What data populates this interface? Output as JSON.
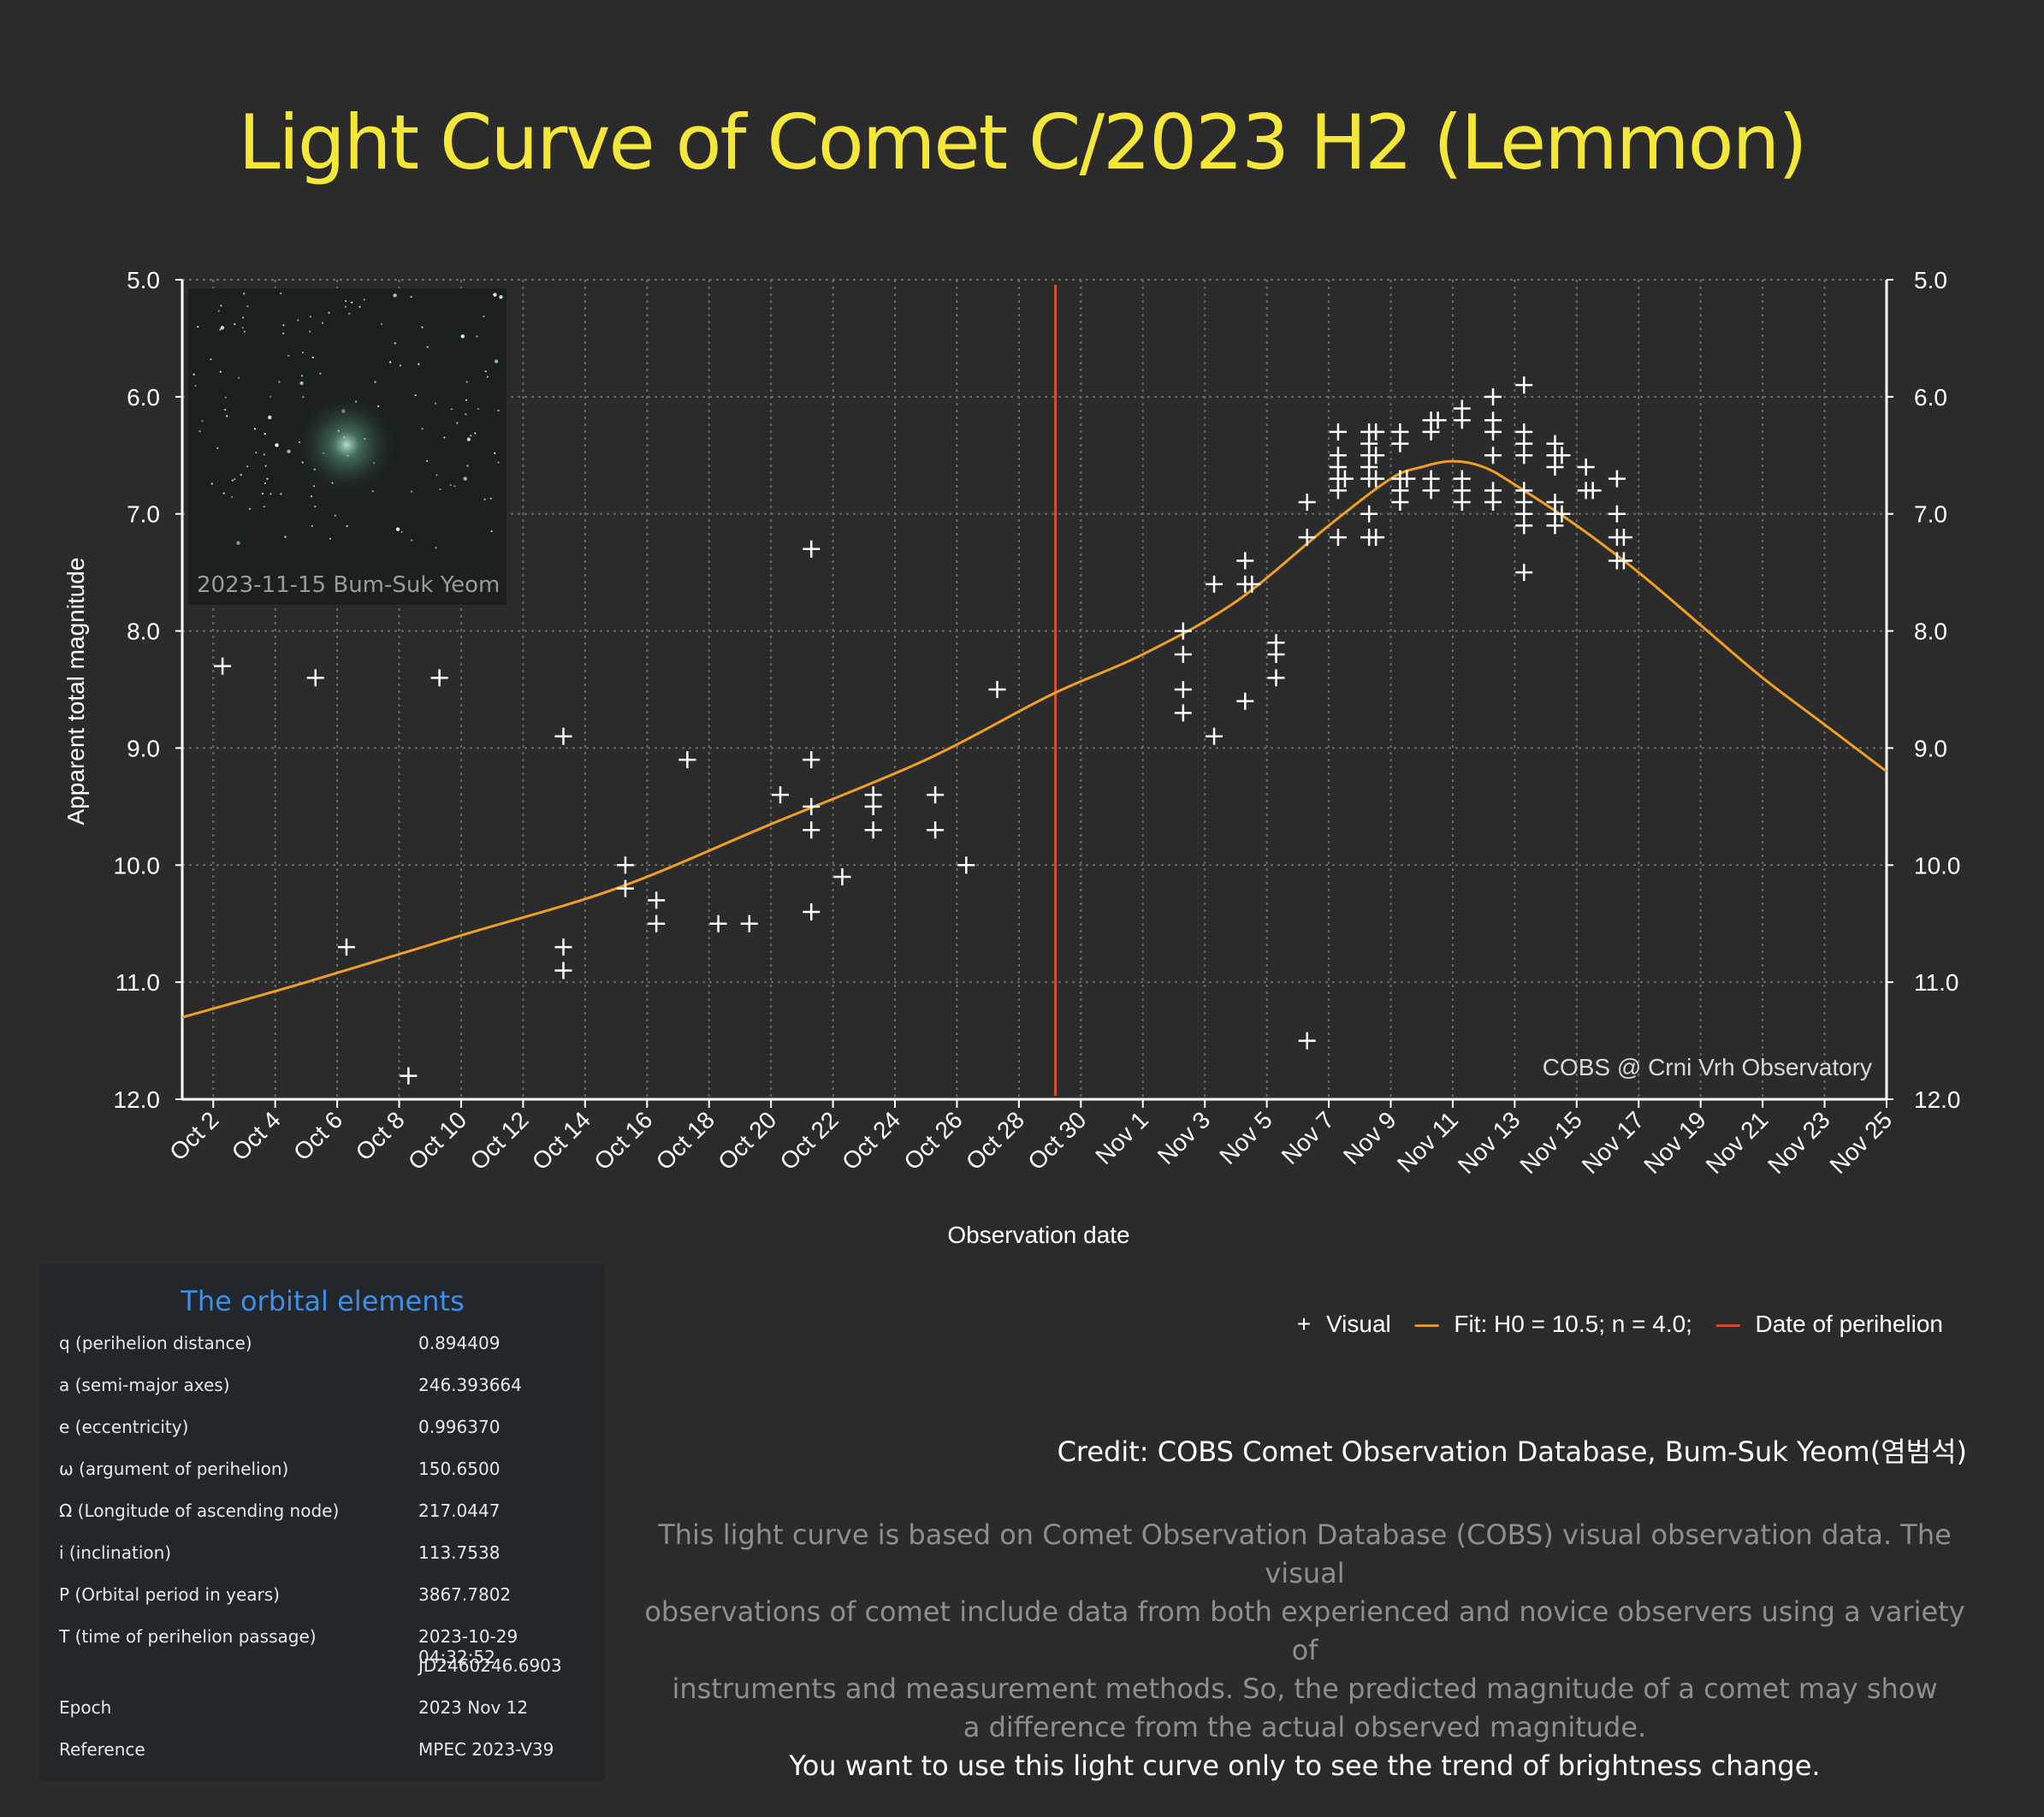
{
  "title": "Light Curve of Comet C/2023 H2 (Lemmon)",
  "colors": {
    "title": "#f5e63a",
    "fit": "#f0a020",
    "perihelion": "#e04a2e",
    "points": "#ffffff",
    "orbital_heading": "#3d8fe8"
  },
  "inset": {
    "caption": "2023-11-15  Bum-Suk Yeom"
  },
  "watermark": "COBS @ Crni Vrh Observatory",
  "legend": {
    "visual": "Visual",
    "fit": "Fit: H0 = 10.5; n = 4.0;",
    "perihelion": "Date of perihelion"
  },
  "chart_data": {
    "type": "scatter",
    "title": "Light Curve of Comet C/2023 H2 (Lemmon)",
    "xlabel": "Observation date",
    "ylabel": "Apparent total magnitude",
    "ylim": [
      12.0,
      5.0
    ],
    "y_inverted": true,
    "xlim": [
      "2023-10-01",
      "2023-11-25"
    ],
    "x_ticks": [
      "Oct 2",
      "Oct 4",
      "Oct 6",
      "Oct 8",
      "Oct 10",
      "Oct 12",
      "Oct 14",
      "Oct 16",
      "Oct 18",
      "Oct 20",
      "Oct 22",
      "Oct 24",
      "Oct 26",
      "Oct 28",
      "Oct 30",
      "Nov 1",
      "Nov 3",
      "Nov 5",
      "Nov 7",
      "Nov 9",
      "Nov 11",
      "Nov 13",
      "Nov 15",
      "Nov 17",
      "Nov 19",
      "Nov 21",
      "Nov 23",
      "Nov 25"
    ],
    "y_ticks": [
      "5.0",
      "6.0",
      "7.0",
      "8.0",
      "9.0",
      "10.0",
      "11.0",
      "12.0"
    ],
    "grid": true,
    "perihelion_date": "2023-10-29",
    "series": [
      {
        "name": "Visual",
        "marker": "+",
        "points": [
          [
            "2023-10-02",
            8.3
          ],
          [
            "2023-10-05",
            8.4
          ],
          [
            "2023-10-06",
            10.7
          ],
          [
            "2023-10-08",
            11.8
          ],
          [
            "2023-10-09",
            8.4
          ],
          [
            "2023-10-13",
            8.9
          ],
          [
            "2023-10-13",
            10.7
          ],
          [
            "2023-10-13",
            10.9
          ],
          [
            "2023-10-15",
            10.0
          ],
          [
            "2023-10-15",
            10.2
          ],
          [
            "2023-10-16",
            10.3
          ],
          [
            "2023-10-16",
            10.5
          ],
          [
            "2023-10-17",
            9.1
          ],
          [
            "2023-10-18",
            10.5
          ],
          [
            "2023-10-19",
            10.5
          ],
          [
            "2023-10-20",
            9.4
          ],
          [
            "2023-10-21",
            9.7
          ],
          [
            "2023-10-21",
            7.3
          ],
          [
            "2023-10-21",
            9.1
          ],
          [
            "2023-10-21",
            10.4
          ],
          [
            "2023-10-21",
            9.5
          ],
          [
            "2023-10-22",
            10.1
          ],
          [
            "2023-10-23",
            9.4
          ],
          [
            "2023-10-23",
            9.5
          ],
          [
            "2023-10-23",
            9.7
          ],
          [
            "2023-10-25",
            9.4
          ],
          [
            "2023-10-25",
            9.7
          ],
          [
            "2023-10-26",
            10.0
          ],
          [
            "2023-10-27",
            8.5
          ],
          [
            "2023-11-02",
            8.0
          ],
          [
            "2023-11-02",
            8.2
          ],
          [
            "2023-11-02",
            8.5
          ],
          [
            "2023-11-02",
            8.7
          ],
          [
            "2023-11-03",
            7.6
          ],
          [
            "2023-11-03",
            8.9
          ],
          [
            "2023-11-04",
            7.4
          ],
          [
            "2023-11-04",
            7.6
          ],
          [
            "2023-11-04",
            8.6
          ],
          [
            "2023-11-04",
            7.6
          ],
          [
            "2023-11-05",
            8.1
          ],
          [
            "2023-11-05",
            8.2
          ],
          [
            "2023-11-05",
            8.4
          ],
          [
            "2023-11-06",
            7.2
          ],
          [
            "2023-11-06",
            6.9
          ],
          [
            "2023-11-06",
            11.5
          ],
          [
            "2023-11-07",
            6.3
          ],
          [
            "2023-11-07",
            6.5
          ],
          [
            "2023-11-07",
            6.6
          ],
          [
            "2023-11-07",
            6.7
          ],
          [
            "2023-11-07",
            6.8
          ],
          [
            "2023-11-07",
            7.2
          ],
          [
            "2023-11-07",
            6.7
          ],
          [
            "2023-11-08",
            7.2
          ],
          [
            "2023-11-08",
            6.7
          ],
          [
            "2023-11-08",
            6.3
          ],
          [
            "2023-11-08",
            6.4
          ],
          [
            "2023-11-08",
            6.5
          ],
          [
            "2023-11-08",
            6.6
          ],
          [
            "2023-11-08",
            7.0
          ],
          [
            "2023-11-08",
            7.2
          ],
          [
            "2023-11-08",
            6.7
          ],
          [
            "2023-11-08",
            6.3
          ],
          [
            "2023-11-08",
            6.5
          ],
          [
            "2023-11-09",
            6.7
          ],
          [
            "2023-11-09",
            6.8
          ],
          [
            "2023-11-09",
            6.9
          ],
          [
            "2023-11-09",
            6.4
          ],
          [
            "2023-11-09",
            6.3
          ],
          [
            "2023-11-09",
            6.7
          ],
          [
            "2023-11-10",
            6.8
          ],
          [
            "2023-11-10",
            6.7
          ],
          [
            "2023-11-10",
            6.2
          ],
          [
            "2023-11-10",
            6.3
          ],
          [
            "2023-11-10",
            6.2
          ],
          [
            "2023-11-11",
            6.9
          ],
          [
            "2023-11-11",
            6.1
          ],
          [
            "2023-11-11",
            6.2
          ],
          [
            "2023-11-11",
            6.7
          ],
          [
            "2023-11-11",
            6.8
          ],
          [
            "2023-11-12",
            6.0
          ],
          [
            "2023-11-12",
            6.2
          ],
          [
            "2023-11-12",
            6.3
          ],
          [
            "2023-11-12",
            6.8
          ],
          [
            "2023-11-12",
            6.9
          ],
          [
            "2023-11-12",
            6.5
          ],
          [
            "2023-11-13",
            5.9
          ],
          [
            "2023-11-13",
            6.3
          ],
          [
            "2023-11-13",
            6.4
          ],
          [
            "2023-11-13",
            6.5
          ],
          [
            "2023-11-13",
            6.8
          ],
          [
            "2023-11-13",
            6.9
          ],
          [
            "2023-11-13",
            7.0
          ],
          [
            "2023-11-13",
            7.1
          ],
          [
            "2023-11-13",
            7.5
          ],
          [
            "2023-11-14",
            6.4
          ],
          [
            "2023-11-14",
            6.5
          ],
          [
            "2023-11-14",
            6.6
          ],
          [
            "2023-11-14",
            6.9
          ],
          [
            "2023-11-14",
            7.0
          ],
          [
            "2023-11-14",
            7.1
          ],
          [
            "2023-11-14",
            7.0
          ],
          [
            "2023-11-14",
            6.5
          ],
          [
            "2023-11-15",
            6.6
          ],
          [
            "2023-11-15",
            6.8
          ],
          [
            "2023-11-15",
            6.8
          ],
          [
            "2023-11-16",
            6.7
          ],
          [
            "2023-11-16",
            7.2
          ],
          [
            "2023-11-16",
            7.0
          ],
          [
            "2023-11-16",
            7.2
          ],
          [
            "2023-11-16",
            7.4
          ],
          [
            "2023-11-16",
            7.4
          ]
        ]
      },
      {
        "name": "Fit: H0 = 10.5; n = 4.0;",
        "marker": "line",
        "points": [
          [
            "2023-10-01",
            11.3
          ],
          [
            "2023-10-05",
            11.0
          ],
          [
            "2023-10-10",
            10.6
          ],
          [
            "2023-10-15",
            10.2
          ],
          [
            "2023-10-20",
            9.65
          ],
          [
            "2023-10-25",
            9.1
          ],
          [
            "2023-10-29",
            8.55
          ],
          [
            "2023-11-01",
            8.2
          ],
          [
            "2023-11-04",
            7.75
          ],
          [
            "2023-11-07",
            7.1
          ],
          [
            "2023-11-09",
            6.7
          ],
          [
            "2023-11-10",
            6.6
          ],
          [
            "2023-11-11",
            6.55
          ],
          [
            "2023-11-12",
            6.6
          ],
          [
            "2023-11-13",
            6.75
          ],
          [
            "2023-11-15",
            7.1
          ],
          [
            "2023-11-17",
            7.5
          ],
          [
            "2023-11-19",
            7.95
          ],
          [
            "2023-11-21",
            8.4
          ],
          [
            "2023-11-23",
            8.8
          ],
          [
            "2023-11-25",
            9.2
          ]
        ]
      },
      {
        "name": "Date of perihelion",
        "marker": "vline",
        "x": "2023-10-29"
      }
    ]
  },
  "orbital": {
    "heading": "The orbital elements",
    "rows": [
      {
        "label": "q (perihelion distance)",
        "value": "0.894409"
      },
      {
        "label": "a (semi-major axes)",
        "value": "246.393664"
      },
      {
        "label": "e (eccentricity)",
        "value": "0.996370"
      },
      {
        "label": "ω (argument of perihelion)",
        "value": "150.6500"
      },
      {
        "label": "Ω (Longitude of ascending node)",
        "value": "217.0447"
      },
      {
        "label": "i (inclination)",
        "value": "113.7538"
      },
      {
        "label": "P (Orbital period in years)",
        "value": "3867.7802"
      },
      {
        "label": "T (time of perihelion passage)",
        "value": "2023-10-29 04:32:52",
        "value2": "JD2460246.6903"
      },
      {
        "label": "Epoch",
        "value": "2023 Nov 12"
      },
      {
        "label": "Reference",
        "value": "MPEC 2023-V39"
      }
    ]
  },
  "credit": "Credit: COBS Comet Observation Database, Bum-Suk Yeom(염범석)",
  "note": {
    "lines": [
      "This light curve is based on Comet Observation Database (COBS) visual observation data. The visual",
      "observations of comet include data from both experienced and novice observers using a variety of",
      "instruments and measurement methods. So, the predicted magnitude of a comet may show",
      "a difference from the actual observed magnitude."
    ],
    "emphasis": "You want to use this light curve only to see the trend of brightness change."
  }
}
